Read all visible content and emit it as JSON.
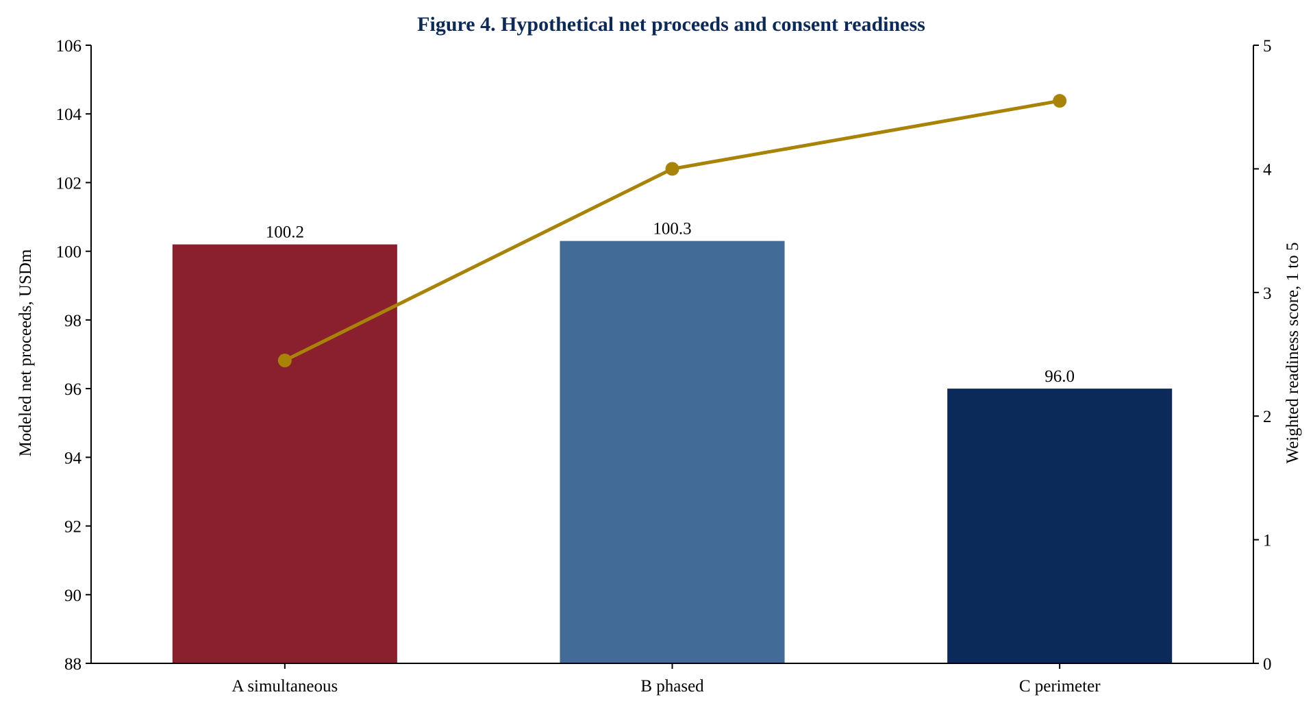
{
  "chart_data": {
    "type": "bar",
    "title": "Figure 4. Hypothetical net proceeds and consent readiness",
    "categories": [
      "A simultaneous",
      "B phased",
      "C perimeter"
    ],
    "bars": {
      "values": [
        100.2,
        100.3,
        96.0
      ],
      "labels": [
        "100.2",
        "100.3",
        "96.0"
      ],
      "colors": [
        "#8a1f2d",
        "#426c97",
        "#0b2a5a"
      ]
    },
    "line": {
      "values": [
        2.45,
        4.0,
        4.55
      ],
      "color": "#a88308"
    },
    "y_left": {
      "label": "Modeled net proceeds, USDm",
      "lim": [
        88,
        106
      ],
      "ticks": [
        "88",
        "90",
        "92",
        "94",
        "96",
        "98",
        "100",
        "102",
        "104",
        "106"
      ]
    },
    "y_right": {
      "label": "Weighted readiness score, 1 to 5",
      "lim": [
        0,
        5
      ],
      "ticks": [
        "0",
        "1",
        "2",
        "3",
        "4",
        "5"
      ]
    },
    "title_color": "#0b2a5a",
    "grid": false,
    "legend": "none"
  }
}
